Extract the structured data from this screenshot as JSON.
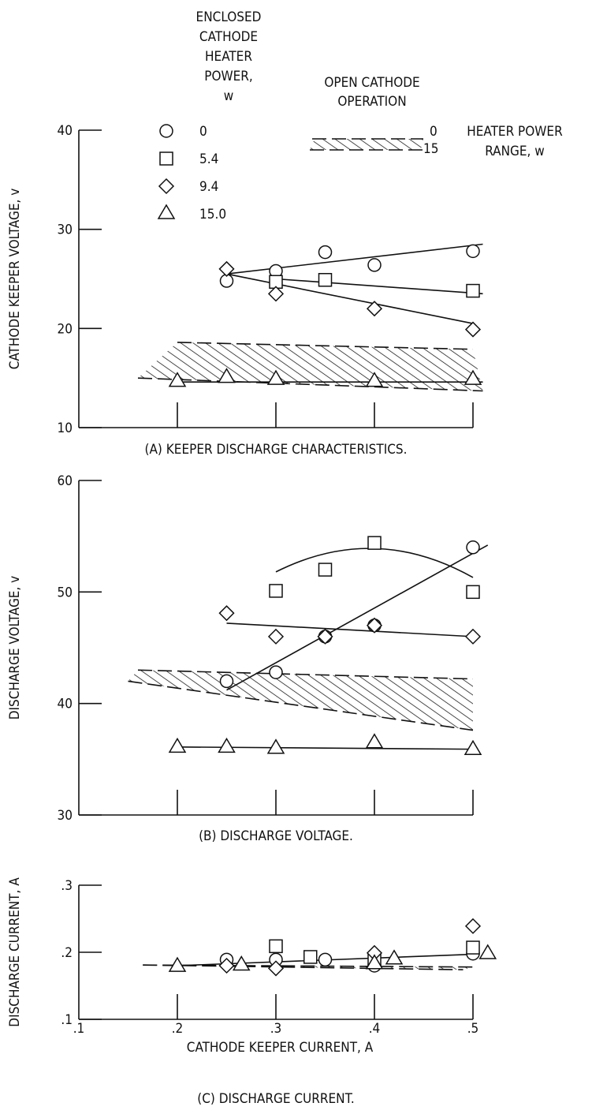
{
  "legend": {
    "enclosed_header": [
      "ENCLOSED",
      "CATHODE",
      "HEATER",
      "POWER,",
      "w"
    ],
    "entries": [
      {
        "symbol": "circle",
        "label": "0"
      },
      {
        "symbol": "square",
        "label": "5.4"
      },
      {
        "symbol": "diamond",
        "label": "9.4"
      },
      {
        "symbol": "triangle",
        "label": "15.0"
      }
    ],
    "open_header": [
      "OPEN CATHODE",
      "OPERATION"
    ],
    "band_top_label": "0",
    "band_bottom_label": "15",
    "band_side_label": [
      "HEATER POWER",
      "RANGE, w"
    ]
  },
  "x_axis": {
    "label": "CATHODE KEEPER CURRENT, A",
    "tick_labels": [
      ".1",
      ".2",
      ".3",
      ".4",
      ".5"
    ]
  },
  "chart_data": [
    {
      "type": "scatter",
      "caption": "(A) KEEPER DISCHARGE CHARACTERISTICS.",
      "ylabel": "CATHODE KEEPER VOLTAGE, v",
      "xlim": [
        0.1,
        0.5
      ],
      "ylim": [
        10,
        40
      ],
      "yticks": [
        10,
        20,
        30,
        40
      ],
      "ytick_labels": [
        "10",
        "20",
        "30",
        "40"
      ],
      "series": [
        {
          "name": "0",
          "symbol": "circle",
          "points": [
            [
              0.25,
              24.8
            ],
            [
              0.3,
              25.8
            ],
            [
              0.35,
              27.7
            ],
            [
              0.4,
              26.4
            ],
            [
              0.5,
              27.8
            ]
          ],
          "fit": [
            [
              0.25,
              25.5
            ],
            [
              0.51,
              28.5
            ]
          ]
        },
        {
          "name": "5.4",
          "symbol": "square",
          "points": [
            [
              0.3,
              24.7
            ],
            [
              0.35,
              24.9
            ],
            [
              0.5,
              23.8
            ]
          ],
          "fit": [
            [
              0.3,
              25.0
            ],
            [
              0.51,
              23.5
            ]
          ]
        },
        {
          "name": "9.4",
          "symbol": "diamond",
          "points": [
            [
              0.25,
              26.0
            ],
            [
              0.3,
              23.5
            ],
            [
              0.4,
              22.0
            ],
            [
              0.5,
              19.9
            ]
          ],
          "fit": [
            [
              0.25,
              25.5
            ],
            [
              0.5,
              20.5
            ]
          ]
        },
        {
          "name": "15.0",
          "symbol": "triangle",
          "points": [
            [
              0.2,
              14.8
            ],
            [
              0.25,
              15.2
            ],
            [
              0.3,
              15.0
            ],
            [
              0.4,
              14.8
            ],
            [
              0.5,
              15.0
            ]
          ],
          "fit": [
            [
              0.2,
              14.6
            ],
            [
              0.51,
              14.6
            ]
          ]
        }
      ],
      "band": {
        "upper": [
          [
            0.2,
            18.6
          ],
          [
            0.5,
            17.9
          ]
        ],
        "lower": [
          [
            0.16,
            15.0
          ],
          [
            0.51,
            13.7
          ]
        ]
      }
    },
    {
      "type": "scatter",
      "caption": "(B) DISCHARGE VOLTAGE.",
      "ylabel": "DISCHARGE VOLTAGE, v",
      "xlim": [
        0.1,
        0.5
      ],
      "ylim": [
        30,
        60
      ],
      "yticks": [
        30,
        40,
        50,
        60
      ],
      "ytick_labels": [
        "30",
        "40",
        "50",
        "60"
      ],
      "series": [
        {
          "name": "0",
          "symbol": "circle",
          "points": [
            [
              0.25,
              42.0
            ],
            [
              0.3,
              42.8
            ],
            [
              0.35,
              46.0
            ],
            [
              0.4,
              47.0
            ],
            [
              0.5,
              54.0
            ]
          ],
          "fit": [
            [
              0.25,
              41.2
            ],
            [
              0.515,
              54.2
            ]
          ]
        },
        {
          "name": "5.4",
          "symbol": "square",
          "points": [
            [
              0.3,
              50.1
            ],
            [
              0.35,
              52.0
            ],
            [
              0.4,
              54.4
            ],
            [
              0.5,
              50.0
            ]
          ],
          "fit": [
            [
              0.3,
              51.8
            ],
            [
              0.4,
              53.9
            ],
            [
              0.5,
              51.3
            ]
          ]
        },
        {
          "name": "9.4",
          "symbol": "diamond",
          "points": [
            [
              0.25,
              48.1
            ],
            [
              0.3,
              46.0
            ],
            [
              0.35,
              46.0
            ],
            [
              0.4,
              47.0
            ],
            [
              0.5,
              46.0
            ]
          ],
          "fit": [
            [
              0.25,
              47.2
            ],
            [
              0.5,
              46.0
            ]
          ]
        },
        {
          "name": "15.0",
          "symbol": "triangle",
          "points": [
            [
              0.2,
              36.2
            ],
            [
              0.25,
              36.2
            ],
            [
              0.3,
              36.1
            ],
            [
              0.4,
              36.6
            ],
            [
              0.5,
              36.0
            ]
          ],
          "fit": [
            [
              0.2,
              36.1
            ],
            [
              0.5,
              35.9
            ]
          ]
        }
      ],
      "band": {
        "upper": [
          [
            0.16,
            43.0
          ],
          [
            0.5,
            42.2
          ]
        ],
        "lower": [
          [
            0.15,
            42.0
          ],
          [
            0.5,
            37.6
          ]
        ]
      }
    },
    {
      "type": "scatter",
      "caption": "(C) DISCHARGE CURRENT.",
      "ylabel": "DISCHARGE CURRENT, A",
      "xlabel": "CATHODE KEEPER CURRENT, A",
      "xlim": [
        0.1,
        0.5
      ],
      "ylim": [
        0.1,
        0.3
      ],
      "yticks": [
        0.1,
        0.2,
        0.3
      ],
      "ytick_labels": [
        ".1",
        ".2",
        ".3"
      ],
      "series": [
        {
          "name": "0",
          "symbol": "circle",
          "points": [
            [
              0.25,
              0.189
            ],
            [
              0.3,
              0.189
            ],
            [
              0.35,
              0.189
            ],
            [
              0.4,
              0.18
            ],
            [
              0.5,
              0.198
            ]
          ],
          "fit": [
            [
              0.2,
              0.18
            ],
            [
              0.5,
              0.197
            ]
          ]
        },
        {
          "name": "5.4",
          "symbol": "square",
          "points": [
            [
              0.3,
              0.209
            ],
            [
              0.335,
              0.193
            ],
            [
              0.4,
              0.189
            ],
            [
              0.5,
              0.207
            ]
          ],
          "fit": []
        },
        {
          "name": "9.4",
          "symbol": "diamond",
          "points": [
            [
              0.25,
              0.18
            ],
            [
              0.3,
              0.176
            ],
            [
              0.4,
              0.199
            ],
            [
              0.5,
              0.239
            ]
          ],
          "fit": []
        },
        {
          "name": "15.0",
          "symbol": "triangle",
          "points": [
            [
              0.2,
              0.181
            ],
            [
              0.265,
              0.183
            ],
            [
              0.4,
              0.185
            ],
            [
              0.42,
              0.192
            ],
            [
              0.515,
              0.2
            ]
          ],
          "fit": []
        }
      ],
      "band": {
        "upper": [
          [
            0.165,
            0.181
          ],
          [
            0.5,
            0.178
          ]
        ],
        "lower": [
          [
            0.165,
            0.181
          ],
          [
            0.49,
            0.174
          ]
        ]
      }
    }
  ]
}
